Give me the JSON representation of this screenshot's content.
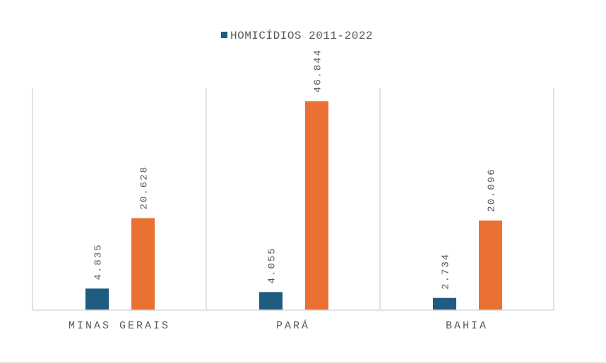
{
  "chart_data": {
    "type": "bar",
    "categories": [
      "MINAS GERAIS",
      "PARÁ",
      "BAHIA"
    ],
    "series": [
      {
        "name": "HOMICÍDIOS 2011-2022",
        "values": [
          4.835,
          4.055,
          2.734
        ],
        "labels": [
          "4.835",
          "4.055",
          "2.734"
        ],
        "color": "#1F5C80"
      },
      {
        "values": [
          20.628,
          46.844,
          20.096
        ],
        "labels": [
          "20.628",
          "46.844",
          "20.096"
        ],
        "color": "#E97132"
      }
    ],
    "legend": {
      "position": "top",
      "entries": [
        "HOMICÍDIOS 2011-2022"
      ]
    },
    "ylim": [
      0,
      50
    ],
    "grid": false,
    "category_separators": true
  }
}
